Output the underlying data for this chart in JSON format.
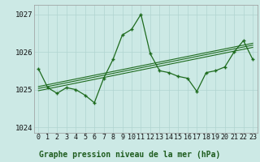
{
  "title": "Graphe pression niveau de la mer (hPa)",
  "x_labels": [
    "0",
    "1",
    "2",
    "3",
    "4",
    "5",
    "6",
    "7",
    "8",
    "9",
    "10",
    "11",
    "12",
    "13",
    "14",
    "15",
    "16",
    "17",
    "18",
    "19",
    "20",
    "21",
    "22",
    "23"
  ],
  "main_line": [
    1025.55,
    1025.05,
    1024.9,
    1025.05,
    1025.0,
    1024.85,
    1024.65,
    1025.3,
    1025.8,
    1026.45,
    1026.6,
    1027.0,
    1025.95,
    1025.5,
    1025.45,
    1025.35,
    1025.3,
    1024.95,
    1025.45,
    1025.5,
    1025.6,
    1026.0,
    1026.3,
    1025.8
  ],
  "trend_lines": [
    [
      1025.08,
      1025.13,
      1025.18,
      1025.23,
      1025.28,
      1025.33,
      1025.38,
      1025.43,
      1025.48,
      1025.53,
      1025.58,
      1025.63,
      1025.68,
      1025.73,
      1025.78,
      1025.83,
      1025.88,
      1025.93,
      1025.98,
      1026.03,
      1026.08,
      1026.13,
      1026.18,
      1026.23
    ],
    [
      1025.03,
      1025.08,
      1025.13,
      1025.18,
      1025.23,
      1025.28,
      1025.33,
      1025.38,
      1025.43,
      1025.48,
      1025.53,
      1025.58,
      1025.63,
      1025.68,
      1025.73,
      1025.78,
      1025.83,
      1025.88,
      1025.93,
      1025.98,
      1026.03,
      1026.08,
      1026.13,
      1026.18
    ],
    [
      1024.97,
      1025.02,
      1025.07,
      1025.12,
      1025.17,
      1025.22,
      1025.27,
      1025.32,
      1025.37,
      1025.42,
      1025.47,
      1025.52,
      1025.57,
      1025.62,
      1025.67,
      1025.72,
      1025.77,
      1025.82,
      1025.87,
      1025.92,
      1025.97,
      1026.02,
      1026.07,
      1026.12
    ]
  ],
  "ylim": [
    1023.85,
    1027.25
  ],
  "yticks": [
    1024,
    1025,
    1026,
    1027
  ],
  "line_color": "#1e6b1e",
  "bg_color": "#cce9e5",
  "grid_color": "#b0d4d0",
  "title_color": "#1e5c1e",
  "title_fontsize": 7,
  "tick_fontsize": 6
}
